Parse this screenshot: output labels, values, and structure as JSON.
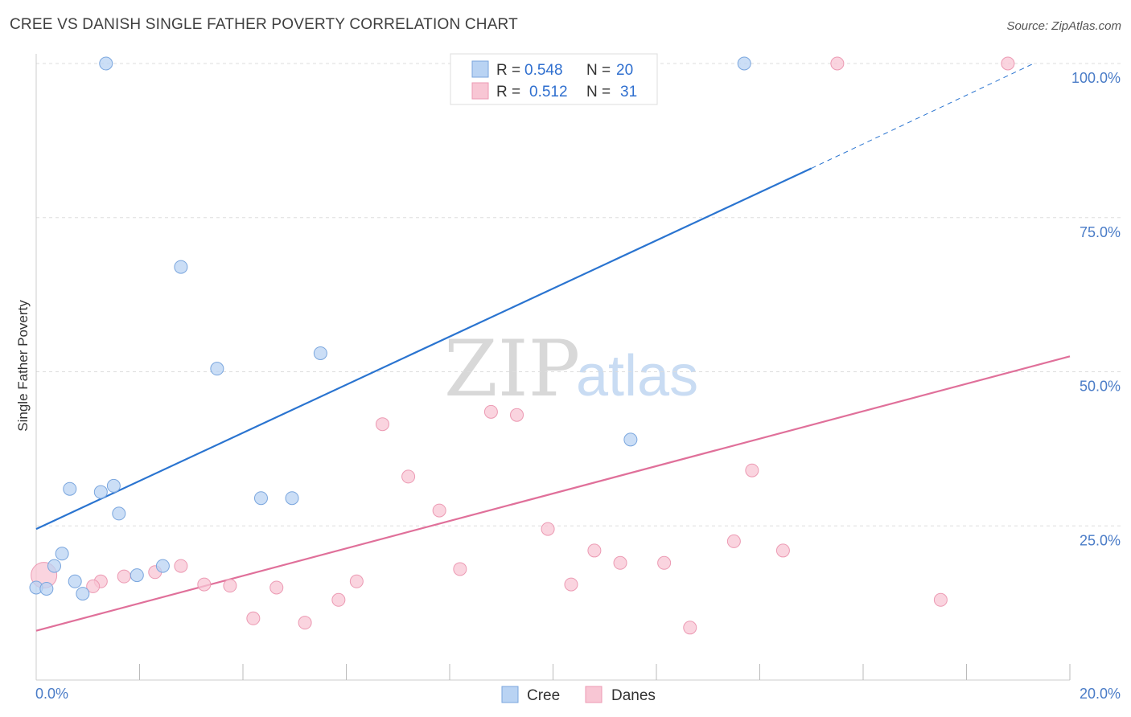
{
  "title": "CREE VS DANISH SINGLE FATHER POVERTY CORRELATION CHART",
  "source": "Source: ZipAtlas.com",
  "watermark": {
    "zip": "ZIP",
    "atlas": "atlas"
  },
  "colors": {
    "cree_fill": "#b9d3f3",
    "cree_stroke": "#7aa6de",
    "cree_line": "#2a74d0",
    "danes_fill": "#f8c6d4",
    "danes_stroke": "#ec9ab3",
    "danes_line": "#e0709a",
    "grid": "#dddddd",
    "axis_label": "#4a7cc7"
  },
  "legend": {
    "rows": [
      {
        "series": "cree",
        "r_label": "R =",
        "r_value": "0.548",
        "n_label": "N =",
        "n_value": "20"
      },
      {
        "series": "danes",
        "r_label": "R =",
        "r_value": "0.512",
        "n_label": "N =",
        "n_value": "31"
      }
    ]
  },
  "chart_data": {
    "type": "scatter",
    "title": "CREE VS DANISH SINGLE FATHER POVERTY CORRELATION CHART",
    "xlabel": "",
    "ylabel": "Single Father Poverty",
    "xlim": [
      0,
      20
    ],
    "ylim": [
      0,
      102
    ],
    "x_tick_labels": [
      {
        "value": 0,
        "label": "0.0%"
      },
      {
        "value": 20,
        "label": "20.0%"
      }
    ],
    "y_tick_labels": [
      {
        "value": 25,
        "label": "25.0%"
      },
      {
        "value": 50,
        "label": "50.0%"
      },
      {
        "value": 75,
        "label": "75.0%"
      },
      {
        "value": 100,
        "label": "100.0%"
      }
    ],
    "series": [
      {
        "name": "Cree",
        "key": "cree",
        "r": 0.548,
        "n": 20,
        "points": [
          [
            0.0,
            15.0
          ],
          [
            0.2,
            14.8
          ],
          [
            0.35,
            18.5
          ],
          [
            0.5,
            20.5
          ],
          [
            0.65,
            31.0
          ],
          [
            0.75,
            16.0
          ],
          [
            0.9,
            14.0
          ],
          [
            1.25,
            30.5
          ],
          [
            1.5,
            31.5
          ],
          [
            1.6,
            27.0
          ],
          [
            1.95,
            17.0
          ],
          [
            2.45,
            18.5
          ],
          [
            2.8,
            67.0
          ],
          [
            3.5,
            50.5
          ],
          [
            4.35,
            29.5
          ],
          [
            4.95,
            29.5
          ],
          [
            5.5,
            53.0
          ],
          [
            11.5,
            39.0
          ],
          [
            1.35,
            100.0
          ],
          [
            13.7,
            100.0
          ]
        ],
        "trend": {
          "x0": 0,
          "y0": 24.5,
          "x1": 15.0,
          "y1": 83.0,
          "dash_x1": 19.3,
          "dash_y1": 100.0
        }
      },
      {
        "name": "Danes",
        "key": "danes",
        "r": 0.512,
        "n": 31,
        "points": [
          [
            0.15,
            17.0
          ],
          [
            1.25,
            16.0
          ],
          [
            1.7,
            16.8
          ],
          [
            2.3,
            17.5
          ],
          [
            2.8,
            18.5
          ],
          [
            3.25,
            15.5
          ],
          [
            3.75,
            15.3
          ],
          [
            4.2,
            10.0
          ],
          [
            4.65,
            15.0
          ],
          [
            5.2,
            9.3
          ],
          [
            5.85,
            13.0
          ],
          [
            6.2,
            16.0
          ],
          [
            6.7,
            41.5
          ],
          [
            7.2,
            33.0
          ],
          [
            7.8,
            27.5
          ],
          [
            8.2,
            18.0
          ],
          [
            8.8,
            43.5
          ],
          [
            9.3,
            43.0
          ],
          [
            9.9,
            24.5
          ],
          [
            10.35,
            15.5
          ],
          [
            10.8,
            21.0
          ],
          [
            11.3,
            19.0
          ],
          [
            12.15,
            19.0
          ],
          [
            12.65,
            8.5
          ],
          [
            13.5,
            22.5
          ],
          [
            13.85,
            34.0
          ],
          [
            14.45,
            21.0
          ],
          [
            17.5,
            13.0
          ],
          [
            1.1,
            15.2
          ],
          [
            15.5,
            100.0
          ],
          [
            18.8,
            100.0
          ]
        ],
        "trend": {
          "x0": 0,
          "y0": 8.0,
          "x1": 20.0,
          "y1": 52.5
        }
      }
    ]
  },
  "bottom_legend": [
    {
      "series": "cree",
      "label": "Cree"
    },
    {
      "series": "danes",
      "label": "Danes"
    }
  ]
}
